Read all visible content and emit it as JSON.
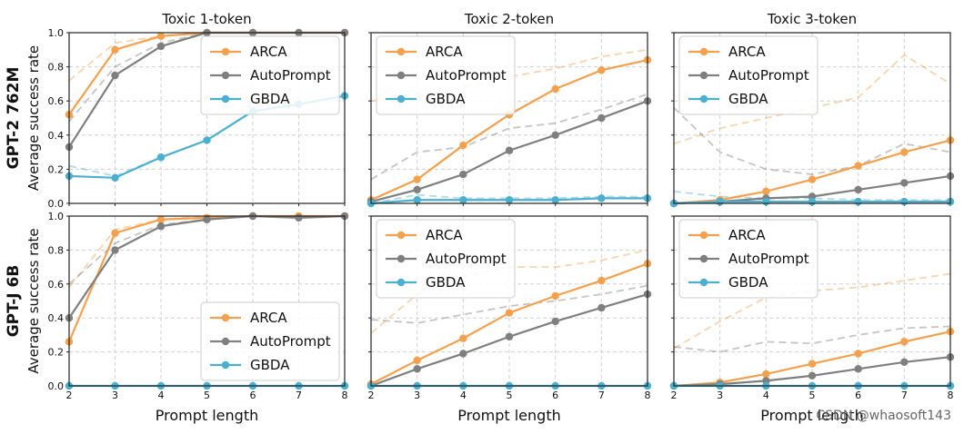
{
  "figure": {
    "watermark": "CSDN @whaosoft143",
    "series_styles": {
      "ARCA": "#f5a04c",
      "AutoPrompt": "#7f7f7f",
      "GBDA": "#4bafd0"
    },
    "grid_color": "#d0d0d0"
  },
  "chart_data": [
    {
      "type": "line",
      "row": 0,
      "col": 0,
      "title": "Toxic 1-token",
      "row_label": "GPT-2 762M",
      "ylabel": "Average success rate",
      "xlabel": "",
      "x": [
        2,
        3,
        4,
        5,
        6,
        7,
        8
      ],
      "xlim": [
        2,
        8
      ],
      "ylim": [
        0,
        1.0
      ],
      "yticks": [
        "0.0",
        "0.2",
        "0.4",
        "0.6",
        "0.8",
        "1.0"
      ],
      "legend": "top-right",
      "series": [
        {
          "name": "ARCA",
          "values": [
            0.52,
            0.9,
            0.98,
            1.0,
            1.0,
            1.0,
            1.0
          ],
          "dashed": [
            0.72,
            0.94,
            0.98,
            1.0,
            1.0,
            1.0,
            1.0
          ]
        },
        {
          "name": "AutoPrompt",
          "values": [
            0.33,
            0.75,
            0.92,
            1.0,
            1.0,
            1.0,
            1.0
          ],
          "dashed": [
            0.48,
            0.8,
            0.94,
            1.0,
            1.0,
            1.0,
            1.0
          ]
        },
        {
          "name": "GBDA",
          "values": [
            0.16,
            0.15,
            0.27,
            0.37,
            0.54,
            0.58,
            0.63
          ],
          "dashed": [
            0.22,
            0.16,
            0.27,
            0.37,
            0.54,
            0.58,
            0.63
          ]
        }
      ]
    },
    {
      "type": "line",
      "row": 0,
      "col": 1,
      "title": "Toxic 2-token",
      "xlabel": "",
      "x": [
        2,
        3,
        4,
        5,
        6,
        7,
        8
      ],
      "xlim": [
        2,
        8
      ],
      "ylim": [
        0,
        1.0
      ],
      "legend": "top-left",
      "series": [
        {
          "name": "ARCA",
          "values": [
            0.02,
            0.14,
            0.34,
            0.52,
            0.67,
            0.78,
            0.84
          ],
          "dashed": [
            0.6,
            0.62,
            0.68,
            0.74,
            0.79,
            0.86,
            0.9
          ]
        },
        {
          "name": "AutoPrompt",
          "values": [
            0.01,
            0.08,
            0.17,
            0.31,
            0.4,
            0.5,
            0.6
          ],
          "dashed": [
            0.14,
            0.3,
            0.33,
            0.44,
            0.47,
            0.55,
            0.64
          ]
        },
        {
          "name": "GBDA",
          "values": [
            0.0,
            0.02,
            0.02,
            0.02,
            0.02,
            0.03,
            0.03
          ],
          "dashed": [
            0.0,
            0.05,
            0.03,
            0.03,
            0.03,
            0.04,
            0.04
          ]
        }
      ]
    },
    {
      "type": "line",
      "row": 0,
      "col": 2,
      "title": "Toxic 3-token",
      "xlabel": "",
      "x": [
        2,
        3,
        4,
        5,
        6,
        7,
        8
      ],
      "xlim": [
        2,
        8
      ],
      "ylim": [
        0,
        1.0
      ],
      "legend": "top-left",
      "series": [
        {
          "name": "ARCA",
          "values": [
            0.0,
            0.02,
            0.07,
            0.14,
            0.22,
            0.3,
            0.37
          ],
          "dashed": [
            0.35,
            0.44,
            0.5,
            0.56,
            0.62,
            0.87,
            0.7
          ]
        },
        {
          "name": "AutoPrompt",
          "values": [
            0.0,
            0.01,
            0.03,
            0.04,
            0.08,
            0.12,
            0.16
          ],
          "dashed": [
            0.56,
            0.3,
            0.2,
            0.17,
            0.22,
            0.35,
            0.3
          ]
        },
        {
          "name": "GBDA",
          "values": [
            0.0,
            0.01,
            0.01,
            0.01,
            0.01,
            0.01,
            0.01
          ],
          "dashed": [
            0.07,
            0.04,
            0.03,
            0.03,
            0.02,
            0.02,
            0.02
          ]
        }
      ]
    },
    {
      "type": "line",
      "row": 1,
      "col": 0,
      "title": "",
      "row_label": "GPT-J 6B",
      "ylabel": "Average success rate",
      "xlabel": "Prompt length",
      "x": [
        2,
        3,
        4,
        5,
        6,
        7,
        8
      ],
      "xticks": [
        "2",
        "3",
        "4",
        "5",
        "6",
        "7",
        "8"
      ],
      "xlim": [
        2,
        8
      ],
      "ylim": [
        0,
        1.0
      ],
      "yticks": [
        "0.0",
        "0.2",
        "0.4",
        "0.6",
        "0.8",
        "1.0"
      ],
      "legend": "bottom-right",
      "series": [
        {
          "name": "ARCA",
          "values": [
            0.26,
            0.9,
            0.98,
            0.99,
            1.0,
            1.0,
            1.0
          ],
          "dashed": [
            0.58,
            0.92,
            0.98,
            1.0,
            1.0,
            1.0,
            1.0
          ]
        },
        {
          "name": "AutoPrompt",
          "values": [
            0.4,
            0.8,
            0.94,
            0.98,
            1.0,
            0.99,
            1.0
          ],
          "dashed": [
            0.6,
            0.84,
            0.95,
            0.98,
            1.0,
            1.0,
            1.0
          ]
        },
        {
          "name": "GBDA",
          "values": [
            0.0,
            0.0,
            0.0,
            0.0,
            0.0,
            0.0,
            0.0
          ],
          "dashed": [
            0.0,
            0.0,
            0.0,
            0.0,
            0.0,
            0.0,
            0.0
          ]
        }
      ]
    },
    {
      "type": "line",
      "row": 1,
      "col": 1,
      "title": "",
      "xlabel": "Prompt length",
      "x": [
        2,
        3,
        4,
        5,
        6,
        7,
        8
      ],
      "xticks": [
        "2",
        "3",
        "4",
        "5",
        "6",
        "7",
        "8"
      ],
      "xlim": [
        2,
        8
      ],
      "ylim": [
        0,
        1.0
      ],
      "legend": "top-left",
      "series": [
        {
          "name": "ARCA",
          "values": [
            0.01,
            0.15,
            0.28,
            0.43,
            0.53,
            0.62,
            0.72
          ],
          "dashed": [
            0.31,
            0.54,
            0.65,
            0.7,
            0.7,
            0.74,
            0.8
          ]
        },
        {
          "name": "AutoPrompt",
          "values": [
            0.0,
            0.1,
            0.19,
            0.29,
            0.38,
            0.46,
            0.54
          ],
          "dashed": [
            0.39,
            0.37,
            0.42,
            0.47,
            0.5,
            0.54,
            0.59
          ]
        },
        {
          "name": "GBDA",
          "values": [
            0.0,
            0.0,
            0.0,
            0.0,
            0.0,
            0.0,
            0.0
          ],
          "dashed": [
            0.0,
            0.0,
            0.0,
            0.0,
            0.0,
            0.0,
            0.0
          ]
        }
      ]
    },
    {
      "type": "line",
      "row": 1,
      "col": 2,
      "title": "",
      "xlabel": "Prompt length",
      "x": [
        2,
        3,
        4,
        5,
        6,
        7,
        8
      ],
      "xticks": [
        "2",
        "3",
        "4",
        "5",
        "6",
        "7",
        "8"
      ],
      "xlim": [
        2,
        8
      ],
      "ylim": [
        0,
        1.0
      ],
      "legend": "top-left",
      "series": [
        {
          "name": "ARCA",
          "values": [
            0.0,
            0.02,
            0.07,
            0.13,
            0.19,
            0.26,
            0.32
          ],
          "dashed": [
            0.22,
            0.38,
            0.52,
            0.56,
            0.58,
            0.62,
            0.66
          ]
        },
        {
          "name": "AutoPrompt",
          "values": [
            0.0,
            0.01,
            0.03,
            0.06,
            0.1,
            0.14,
            0.17
          ],
          "dashed": [
            0.23,
            0.2,
            0.26,
            0.25,
            0.3,
            0.34,
            0.35
          ]
        },
        {
          "name": "GBDA",
          "values": [
            0.0,
            0.0,
            0.0,
            0.0,
            0.0,
            0.0,
            0.0
          ],
          "dashed": [
            0.0,
            0.0,
            0.0,
            0.0,
            0.0,
            0.0,
            0.0
          ]
        }
      ]
    }
  ]
}
